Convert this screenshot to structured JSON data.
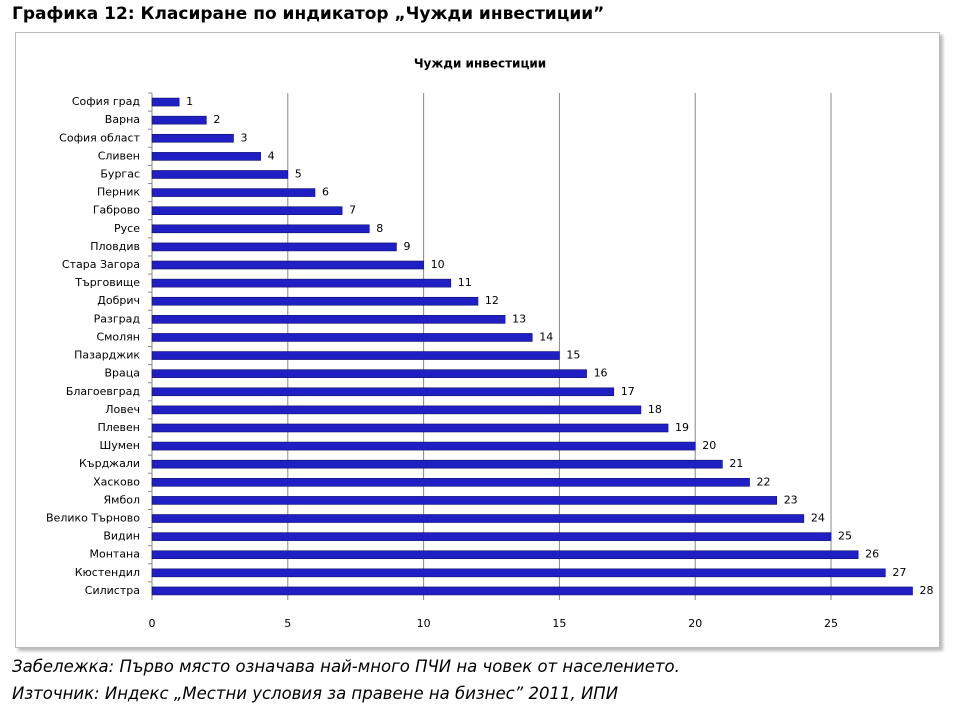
{
  "heading": "Графика 12: Класиране по индикатор „Чужди инвестиции”",
  "note": "Забележка: Първо място означава най-много ПЧИ на човек от населението.",
  "source": "Източник: Индекс „Местни условия за правене на бизнес” 2011, ИПИ",
  "chart_data": {
    "type": "hbar",
    "title": "Чужди инвестиции",
    "categories": [
      "София град",
      "Варна",
      "София област",
      "Сливен",
      "Бургас",
      "Перник",
      "Габрово",
      "Русе",
      "Пловдив",
      "Стара Загора",
      "Търговище",
      "Добрич",
      "Разград",
      "Смолян",
      "Пазарджик",
      "Враца",
      "Благоевград",
      "Ловеч",
      "Плевен",
      "Шумен",
      "Кърджали",
      "Хасково",
      "Ямбол",
      "Велико Търново",
      "Видин",
      "Монтана",
      "Кюстендил",
      "Силистра"
    ],
    "values": [
      1,
      2,
      3,
      4,
      5,
      6,
      7,
      8,
      9,
      10,
      11,
      12,
      13,
      14,
      15,
      16,
      17,
      18,
      19,
      20,
      21,
      22,
      23,
      24,
      25,
      26,
      27,
      28
    ],
    "color": "#1f1fc4",
    "xlim": [
      0,
      28
    ],
    "xticks": [
      0,
      5,
      10,
      15,
      20,
      25
    ],
    "grid": true
  }
}
